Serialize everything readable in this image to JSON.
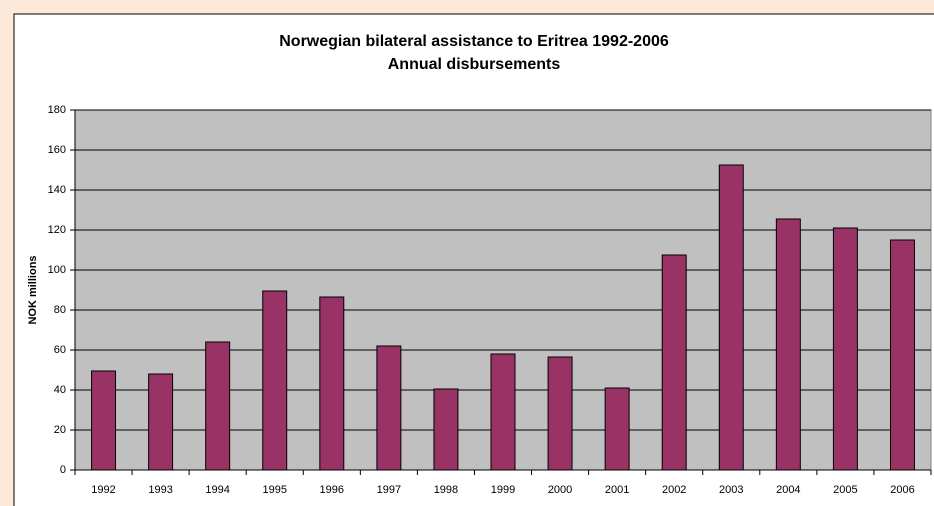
{
  "chart_data": {
    "type": "bar",
    "title": [
      "Norwegian bilateral assistance to Eritrea 1992-2006",
      "Annual disbursements"
    ],
    "y_label": "NOK millions",
    "categories": [
      "1992",
      "1993",
      "1994",
      "1995",
      "1996",
      "1997",
      "1998",
      "1999",
      "2000",
      "2001",
      "2002",
      "2003",
      "2004",
      "2005",
      "2006"
    ],
    "values": [
      49.5,
      48,
      64,
      89.5,
      86.5,
      62,
      40.5,
      58,
      56.5,
      41,
      107.5,
      152.5,
      125.5,
      121,
      115
    ],
    "color": "#993366",
    "ylim": [
      0,
      180
    ],
    "yticks": [
      0,
      20,
      40,
      60,
      80,
      100,
      120,
      140,
      160,
      180
    ],
    "grid": true
  }
}
